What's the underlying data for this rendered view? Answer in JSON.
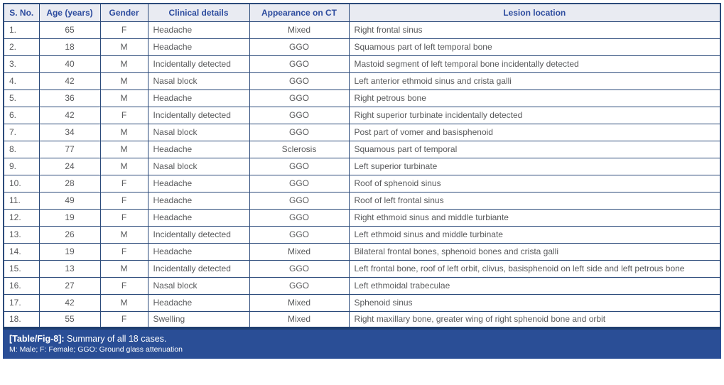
{
  "table": {
    "columns": [
      "S. No.",
      "Age (years)",
      "Gender",
      "Clinical details",
      "Appearance on CT",
      "Lesion location"
    ],
    "rows": [
      {
        "sno": "1.",
        "age": "65",
        "gender": "F",
        "clinical": "Headache",
        "ct": "Mixed",
        "location": "Right frontal sinus"
      },
      {
        "sno": "2.",
        "age": "18",
        "gender": "M",
        "clinical": "Headache",
        "ct": "GGO",
        "location": "Squamous part of left temporal bone"
      },
      {
        "sno": "3.",
        "age": "40",
        "gender": "M",
        "clinical": "Incidentally detected",
        "ct": "GGO",
        "location": "Mastoid segment of left temporal bone incidentally detected"
      },
      {
        "sno": "4.",
        "age": "42",
        "gender": "M",
        "clinical": "Nasal block",
        "ct": "GGO",
        "location": "Left anterior ethmoid sinus and crista galli"
      },
      {
        "sno": "5.",
        "age": "36",
        "gender": "M",
        "clinical": "Headache",
        "ct": "GGO",
        "location": "Right petrous bone"
      },
      {
        "sno": "6.",
        "age": "42",
        "gender": "F",
        "clinical": "Incidentally detected",
        "ct": "GGO",
        "location": "Right superior turbinate incidentally detected"
      },
      {
        "sno": "7.",
        "age": "34",
        "gender": "M",
        "clinical": "Nasal block",
        "ct": "GGO",
        "location": "Post part of vomer and basisphenoid"
      },
      {
        "sno": "8.",
        "age": "77",
        "gender": "M",
        "clinical": "Headache",
        "ct": "Sclerosis",
        "location": "Squamous part of temporal"
      },
      {
        "sno": "9.",
        "age": "24",
        "gender": "M",
        "clinical": "Nasal block",
        "ct": "GGO",
        "location": "Left superior turbinate"
      },
      {
        "sno": "10.",
        "age": "28",
        "gender": "F",
        "clinical": "Headache",
        "ct": "GGO",
        "location": "Roof of sphenoid sinus"
      },
      {
        "sno": "11.",
        "age": "49",
        "gender": "F",
        "clinical": "Headache",
        "ct": "GGO",
        "location": "Roof of left frontal sinus"
      },
      {
        "sno": "12.",
        "age": "19",
        "gender": "F",
        "clinical": "Headache",
        "ct": "GGO",
        "location": "Right ethmoid sinus and middle turbiante"
      },
      {
        "sno": "13.",
        "age": "26",
        "gender": "M",
        "clinical": "Incidentally detected",
        "ct": "GGO",
        "location": "Left ethmoid sinus and middle turbinate"
      },
      {
        "sno": "14.",
        "age": "19",
        "gender": "F",
        "clinical": "Headache",
        "ct": "Mixed",
        "location": "Bilateral frontal bones, sphenoid bones and crista galli"
      },
      {
        "sno": "15.",
        "age": "13",
        "gender": "M",
        "clinical": "Incidentally detected",
        "ct": "GGO",
        "location": "Left frontal bone, roof of left orbit, clivus, basisphenoid on left side and left petrous bone"
      },
      {
        "sno": "16.",
        "age": "27",
        "gender": "F",
        "clinical": "Nasal block",
        "ct": "GGO",
        "location": "Left ethmoidal trabeculae"
      },
      {
        "sno": "17.",
        "age": "42",
        "gender": "M",
        "clinical": "Headache",
        "ct": "Mixed",
        "location": "Sphenoid sinus"
      },
      {
        "sno": "18.",
        "age": "55",
        "gender": "F",
        "clinical": "Swelling",
        "ct": "Mixed",
        "location": "Right maxillary bone, greater wing of right sphenoid bone and orbit"
      }
    ]
  },
  "footer": {
    "caption_label": "[Table/Fig-8]:",
    "caption_text": "Summary of all 18 cases.",
    "legend": "M: Male; F: Female; GGO: Ground glass attenuation"
  },
  "colors": {
    "grid_border": "#2b4a7a",
    "header_bg": "#e9ebf2",
    "header_text": "#2c4b9e",
    "body_text": "#58595b",
    "footer_bg": "#2a4e96",
    "footer_text": "#ffffff"
  }
}
